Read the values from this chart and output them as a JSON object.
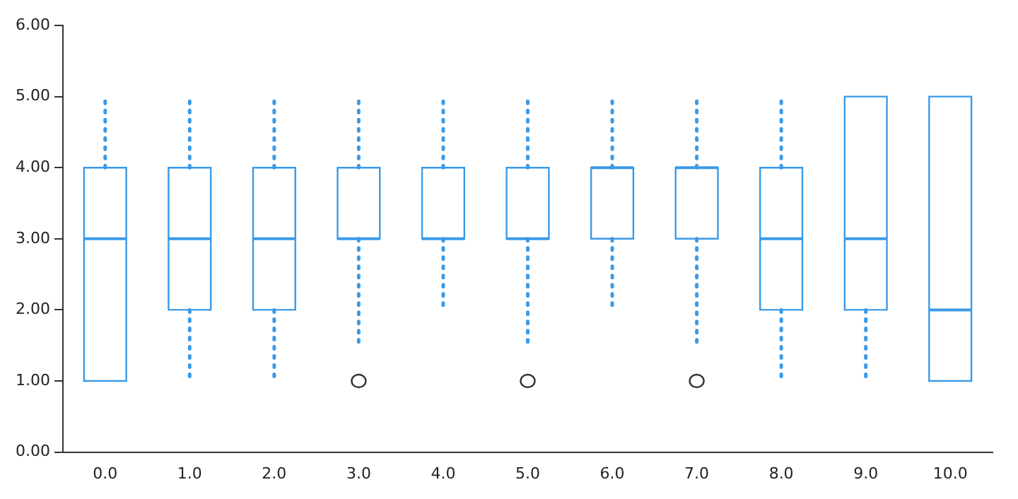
{
  "chart_data": {
    "type": "box",
    "categories": [
      "0.0",
      "1.0",
      "2.0",
      "3.0",
      "4.0",
      "5.0",
      "6.0",
      "7.0",
      "8.0",
      "9.0",
      "10.0"
    ],
    "color": "#3a9ae8",
    "boxes": [
      {
        "low": 1,
        "q1": 1,
        "median": 3,
        "q3": 4,
        "high": 5
      },
      {
        "low": 1,
        "q1": 2,
        "median": 3,
        "q3": 4,
        "high": 5
      },
      {
        "low": 1,
        "q1": 2,
        "median": 3,
        "q3": 4,
        "high": 5
      },
      {
        "low": 1.5,
        "q1": 3,
        "median": 3,
        "q3": 4,
        "high": 5,
        "outliers": [
          1
        ]
      },
      {
        "low": 2,
        "q1": 3,
        "median": 3,
        "q3": 4,
        "high": 5
      },
      {
        "low": 1.5,
        "q1": 3,
        "median": 3,
        "q3": 4,
        "high": 5,
        "outliers": [
          1
        ]
      },
      {
        "low": 2,
        "q1": 3,
        "median": 4,
        "q3": 4,
        "high": 5
      },
      {
        "low": 1.5,
        "q1": 3,
        "median": 4,
        "q3": 4,
        "high": 5,
        "outliers": [
          1
        ]
      },
      {
        "low": 1,
        "q1": 2,
        "median": 3,
        "q3": 4,
        "high": 5
      },
      {
        "low": 1,
        "q1": 2,
        "median": 3,
        "q3": 5,
        "high": 5
      },
      {
        "low": 1,
        "q1": 1,
        "median": 2,
        "q3": 5,
        "high": 5
      }
    ],
    "ylim": [
      0,
      6
    ],
    "yticks": [
      {
        "value": 0,
        "label": "0.00"
      },
      {
        "value": 1,
        "label": "1.00"
      },
      {
        "value": 2,
        "label": "2.00"
      },
      {
        "value": 3,
        "label": "3.00"
      },
      {
        "value": 4,
        "label": "4.00"
      },
      {
        "value": 5,
        "label": "5.00"
      },
      {
        "value": 6,
        "label": "6.00"
      }
    ],
    "grid": false,
    "legend": false
  }
}
